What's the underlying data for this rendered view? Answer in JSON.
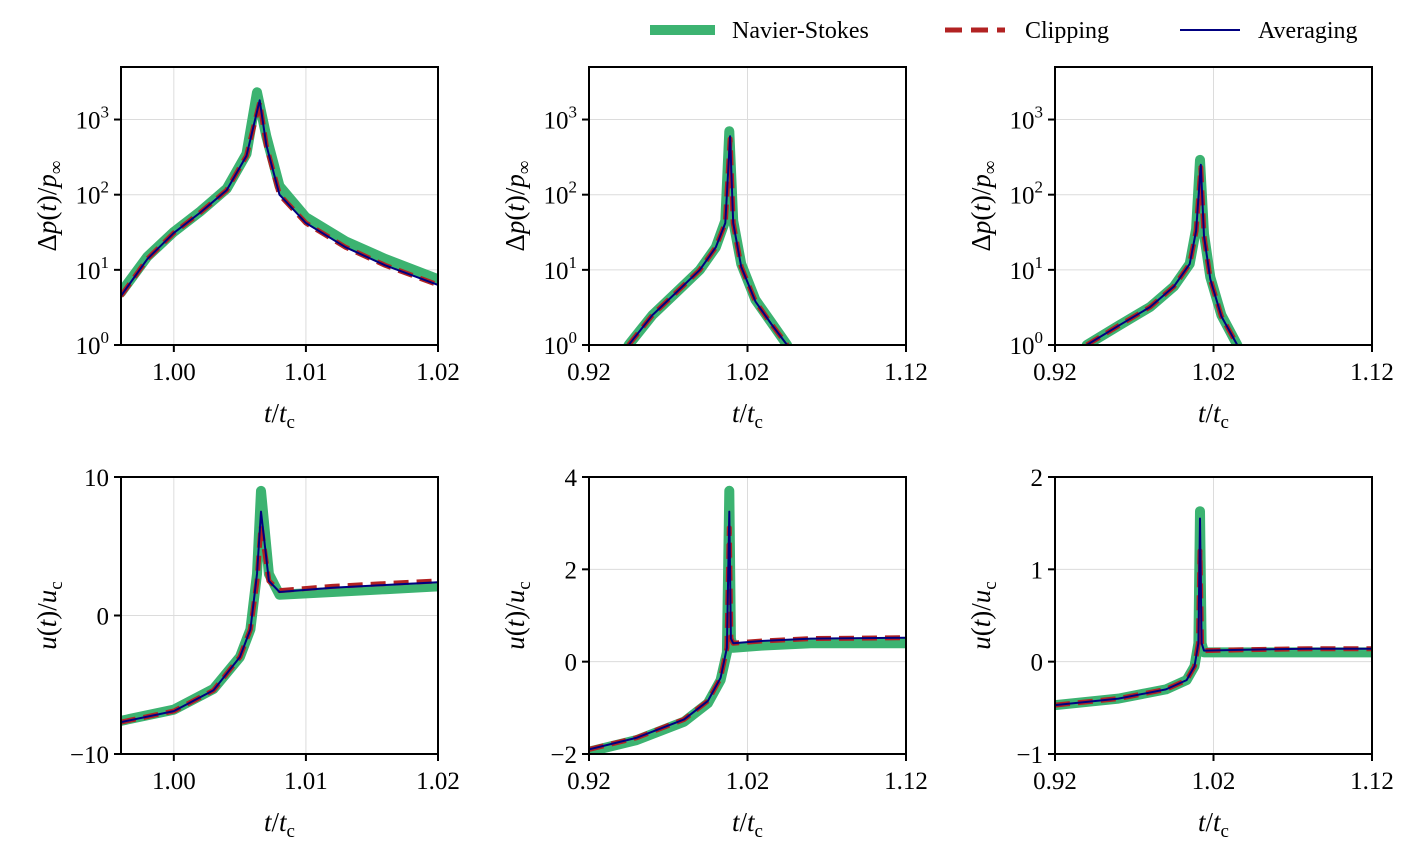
{
  "colors": {
    "navier_stokes": "#3cb371",
    "clipping": "#b22222",
    "averaging": "#000080",
    "grid": "#dcdcdc"
  },
  "legend": {
    "navier_stokes": "Navier-Stokes",
    "clipping": "Clipping",
    "averaging": "Averaging"
  },
  "chart_data": [
    {
      "type": "line",
      "yscale": "log",
      "xlabel": "t/t_c",
      "ylabel": "Δp(t)/p_∞",
      "xlim": [
        0.996,
        1.02
      ],
      "ylim": [
        1,
        5000
      ],
      "xticks": [
        1.0,
        1.01,
        1.02
      ],
      "xtick_labels": [
        "1.00",
        "1.01",
        "1.02"
      ],
      "yticks": [
        1,
        10,
        100,
        1000
      ],
      "series": [
        {
          "name": "Navier-Stokes",
          "x": [
            0.996,
            0.998,
            1.0,
            1.002,
            1.004,
            1.0055,
            1.0063,
            1.007,
            1.008,
            1.01,
            1.013,
            1.016,
            1.02
          ],
          "y": [
            5,
            15,
            32,
            60,
            120,
            350,
            2300,
            600,
            130,
            50,
            24,
            14,
            7.5
          ]
        },
        {
          "name": "Clipping",
          "x": [
            0.996,
            0.998,
            1.0,
            1.002,
            1.004,
            1.0055,
            1.0065,
            1.007,
            1.008,
            1.01,
            1.013,
            1.016,
            1.02
          ],
          "y": [
            4.5,
            14,
            31,
            58,
            115,
            330,
            1700,
            450,
            100,
            42,
            20,
            11.5,
            6.3
          ]
        },
        {
          "name": "Averaging",
          "x": [
            0.996,
            0.998,
            1.0,
            1.002,
            1.004,
            1.0055,
            1.0065,
            1.007,
            1.008,
            1.01,
            1.013,
            1.016,
            1.02
          ],
          "y": [
            4.5,
            14,
            31,
            58,
            115,
            330,
            1800,
            460,
            100,
            42,
            20,
            11.5,
            6.3
          ]
        }
      ]
    },
    {
      "type": "line",
      "yscale": "log",
      "xlabel": "t/t_c",
      "ylabel": "Δp(t)/p_∞",
      "xlim": [
        0.92,
        1.12
      ],
      "ylim": [
        1,
        5000
      ],
      "xticks": [
        0.92,
        1.02,
        1.12
      ],
      "xtick_labels": [
        "0.92",
        "1.02",
        "1.12"
      ],
      "yticks": [
        1,
        10,
        100,
        1000
      ],
      "series": [
        {
          "name": "Navier-Stokes",
          "x": [
            0.945,
            0.96,
            0.975,
            0.99,
            1.0,
            1.006,
            1.0085,
            1.011,
            1.016,
            1.025,
            1.035,
            1.045
          ],
          "y": [
            1,
            2.5,
            5,
            10,
            20,
            45,
            700,
            45,
            12,
            4,
            2,
            1
          ]
        },
        {
          "name": "Clipping",
          "x": [
            0.945,
            0.96,
            0.975,
            0.99,
            1.0,
            1.006,
            1.009,
            1.011,
            1.016,
            1.025,
            1.035,
            1.045
          ],
          "y": [
            1,
            2.5,
            5,
            10,
            20,
            42,
            550,
            42,
            11,
            3.8,
            1.9,
            1
          ]
        },
        {
          "name": "Averaging",
          "x": [
            0.945,
            0.96,
            0.975,
            0.99,
            1.0,
            1.006,
            1.009,
            1.011,
            1.016,
            1.025,
            1.035,
            1.045
          ],
          "y": [
            1,
            2.5,
            5,
            10,
            20,
            42,
            600,
            42,
            11,
            3.8,
            1.9,
            1
          ]
        }
      ]
    },
    {
      "type": "line",
      "yscale": "log",
      "xlabel": "t/t_c",
      "ylabel": "Δp(t)/p_∞",
      "xlim": [
        0.92,
        1.12
      ],
      "ylim": [
        1,
        5000
      ],
      "xticks": [
        0.92,
        1.02,
        1.12
      ],
      "xtick_labels": [
        "0.92",
        "1.02",
        "1.12"
      ],
      "yticks": [
        1,
        10,
        100,
        1000
      ],
      "series": [
        {
          "name": "Navier-Stokes",
          "x": [
            0.94,
            0.96,
            0.98,
            0.995,
            1.005,
            1.009,
            1.0115,
            1.014,
            1.018,
            1.025,
            1.035
          ],
          "y": [
            1,
            1.8,
            3.2,
            6,
            12,
            35,
            290,
            30,
            8,
            2.5,
            1
          ]
        },
        {
          "name": "Clipping",
          "x": [
            0.94,
            0.96,
            0.98,
            0.995,
            1.005,
            1.009,
            1.012,
            1.014,
            1.018,
            1.025,
            1.035
          ],
          "y": [
            1,
            1.8,
            3.2,
            6,
            12,
            33,
            230,
            28,
            7.5,
            2.4,
            1
          ]
        },
        {
          "name": "Averaging",
          "x": [
            0.94,
            0.96,
            0.98,
            0.995,
            1.005,
            1.009,
            1.012,
            1.014,
            1.018,
            1.025,
            1.035
          ],
          "y": [
            1,
            1.8,
            3.2,
            6,
            12,
            33,
            250,
            28,
            7.5,
            2.4,
            1
          ]
        }
      ]
    },
    {
      "type": "line",
      "yscale": "linear",
      "xlabel": "t/t_c",
      "ylabel": "u(t)/u_c",
      "xlim": [
        0.996,
        1.02
      ],
      "ylim": [
        -10,
        10
      ],
      "xticks": [
        1.0,
        1.01,
        1.02
      ],
      "xtick_labels": [
        "1.00",
        "1.01",
        "1.02"
      ],
      "yticks": [
        -10,
        0,
        10
      ],
      "ytick_labels": [
        "−10",
        "0",
        "10"
      ],
      "series": [
        {
          "name": "Navier-Stokes",
          "x": [
            0.996,
            1.0,
            1.003,
            1.005,
            1.0058,
            1.0063,
            1.0066,
            1.0072,
            1.008,
            1.012,
            1.016,
            1.02
          ],
          "y": [
            -7.6,
            -6.8,
            -5.3,
            -3.0,
            -1.0,
            3.0,
            9.0,
            3.0,
            1.5,
            1.7,
            1.9,
            2.1
          ]
        },
        {
          "name": "Clipping",
          "x": [
            0.996,
            1.0,
            1.003,
            1.005,
            1.0058,
            1.0063,
            1.0066,
            1.0072,
            1.008,
            1.012,
            1.016,
            1.02
          ],
          "y": [
            -7.7,
            -6.9,
            -5.4,
            -3.0,
            -1.0,
            2.5,
            6.5,
            2.5,
            1.8,
            2.1,
            2.3,
            2.5
          ]
        },
        {
          "name": "Averaging",
          "x": [
            0.996,
            1.0,
            1.003,
            1.005,
            1.0058,
            1.0063,
            1.0066,
            1.0072,
            1.008,
            1.012,
            1.016,
            1.02
          ],
          "y": [
            -7.7,
            -6.9,
            -5.4,
            -3.0,
            -1.0,
            3.0,
            7.5,
            2.5,
            1.7,
            2.0,
            2.2,
            2.4
          ]
        }
      ]
    },
    {
      "type": "line",
      "yscale": "linear",
      "xlabel": "t/t_c",
      "ylabel": "u(t)/u_c",
      "xlim": [
        0.92,
        1.12
      ],
      "ylim": [
        -2,
        4
      ],
      "xticks": [
        0.92,
        1.02,
        1.12
      ],
      "xtick_labels": [
        "0.92",
        "1.02",
        "1.12"
      ],
      "yticks": [
        -2,
        0,
        2,
        4
      ],
      "ytick_labels": [
        "−2",
        "0",
        "2",
        "4"
      ],
      "series": [
        {
          "name": "Navier-Stokes",
          "x": [
            0.92,
            0.95,
            0.98,
            0.995,
            1.003,
            1.007,
            1.0085,
            1.0095,
            1.011,
            1.03,
            1.06,
            1.12
          ],
          "y": [
            -1.95,
            -1.7,
            -1.3,
            -0.9,
            -0.4,
            0.2,
            3.7,
            0.5,
            0.3,
            0.35,
            0.4,
            0.4
          ]
        },
        {
          "name": "Clipping",
          "x": [
            0.92,
            0.95,
            0.98,
            0.995,
            1.003,
            1.007,
            1.0085,
            1.0095,
            1.011,
            1.03,
            1.06,
            1.12
          ],
          "y": [
            -1.9,
            -1.65,
            -1.25,
            -0.85,
            -0.35,
            0.3,
            2.9,
            0.5,
            0.4,
            0.45,
            0.5,
            0.52
          ]
        },
        {
          "name": "Averaging",
          "x": [
            0.92,
            0.95,
            0.98,
            0.995,
            1.003,
            1.007,
            1.0085,
            1.0095,
            1.011,
            1.03,
            1.06,
            1.12
          ],
          "y": [
            -1.9,
            -1.65,
            -1.25,
            -0.85,
            -0.35,
            0.3,
            3.25,
            0.5,
            0.4,
            0.45,
            0.5,
            0.52
          ]
        }
      ]
    },
    {
      "type": "line",
      "yscale": "linear",
      "xlabel": "t/t_c",
      "ylabel": "u(t)/u_c",
      "xlim": [
        0.92,
        1.12
      ],
      "ylim": [
        -1,
        2
      ],
      "xticks": [
        0.92,
        1.02,
        1.12
      ],
      "xtick_labels": [
        "0.92",
        "1.02",
        "1.12"
      ],
      "yticks": [
        -1,
        0,
        1,
        2
      ],
      "ytick_labels": [
        "−1",
        "0",
        "1",
        "2"
      ],
      "series": [
        {
          "name": "Navier-Stokes",
          "x": [
            0.92,
            0.96,
            0.99,
            1.003,
            1.008,
            1.0105,
            1.0115,
            1.0125,
            1.014,
            1.04,
            1.08,
            1.12
          ],
          "y": [
            -0.47,
            -0.4,
            -0.3,
            -0.2,
            -0.05,
            0.2,
            1.63,
            0.2,
            0.1,
            0.1,
            0.1,
            0.1
          ]
        },
        {
          "name": "Clipping",
          "x": [
            0.92,
            0.96,
            0.99,
            1.003,
            1.008,
            1.0105,
            1.0115,
            1.0125,
            1.014,
            1.04,
            1.08,
            1.12
          ],
          "y": [
            -0.47,
            -0.4,
            -0.3,
            -0.2,
            -0.05,
            0.2,
            1.2,
            0.2,
            0.12,
            0.13,
            0.14,
            0.14
          ]
        },
        {
          "name": "Averaging",
          "x": [
            0.92,
            0.96,
            0.99,
            1.003,
            1.008,
            1.0105,
            1.0115,
            1.0125,
            1.014,
            1.04,
            1.08,
            1.12
          ],
          "y": [
            -0.47,
            -0.4,
            -0.3,
            -0.2,
            -0.05,
            0.2,
            1.55,
            0.2,
            0.12,
            0.13,
            0.14,
            0.14
          ]
        }
      ]
    }
  ]
}
